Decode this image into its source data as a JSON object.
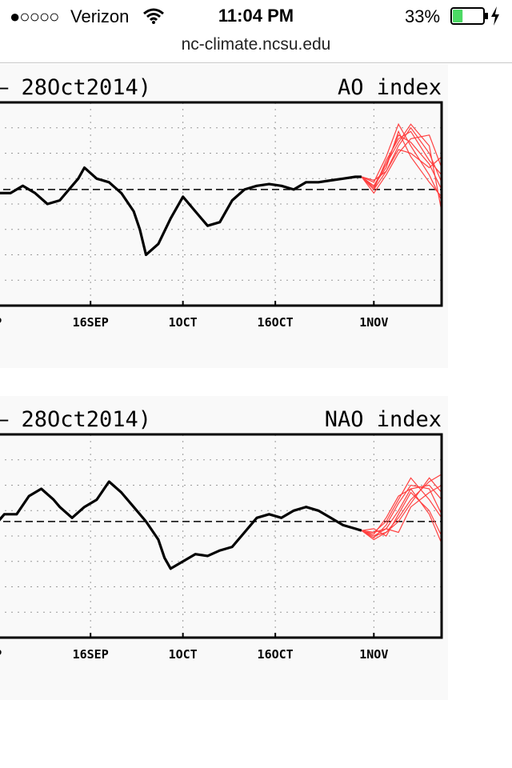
{
  "status_bar": {
    "signal_dots": "●○○○○",
    "carrier": "Verizon",
    "time": "11:04 PM",
    "battery_percent": "33%",
    "battery_level": 0.33,
    "wifi_icon": "wifi-icon",
    "battery_icon": "battery-icon",
    "charging_icon": "charging-bolt-icon"
  },
  "url_bar": {
    "url": "nc-climate.ncsu.edu"
  },
  "colors": {
    "observed": "#000000",
    "forecast": "#ff4040",
    "zero_line": "#000000",
    "grid": "#999999"
  },
  "chart_data": [
    {
      "type": "line",
      "title_left": "– 28Oct2014)",
      "title_right": "AO index",
      "tick_labels": [
        "P",
        "16SEP",
        "1OCT",
        "16OCT",
        "1NOV"
      ],
      "x_ticks": [
        0,
        15,
        30,
        45,
        61
      ],
      "xlim": [
        -1,
        72
      ],
      "ylim": [
        -3.2,
        2.4
      ],
      "zero_line": 0,
      "grid": true,
      "observed": {
        "x": [
          -1,
          0,
          2,
          4,
          6,
          8,
          10,
          12,
          13,
          14,
          16,
          18,
          20,
          22,
          23,
          24,
          26,
          28,
          30,
          32,
          34,
          36,
          37,
          38,
          40,
          42,
          44,
          46,
          48,
          50,
          52,
          54,
          56,
          58,
          59
        ],
        "y": [
          0.0,
          -0.1,
          -0.1,
          0.1,
          -0.1,
          -0.4,
          -0.3,
          0.1,
          0.3,
          0.6,
          0.3,
          0.2,
          -0.1,
          -0.6,
          -1.1,
          -1.8,
          -1.5,
          -0.8,
          -0.2,
          -0.6,
          -1.0,
          -0.9,
          -0.6,
          -0.3,
          0.0,
          0.1,
          0.15,
          0.1,
          0.0,
          0.2,
          0.2,
          0.25,
          0.3,
          0.35,
          0.35
        ]
      },
      "forecast": [
        {
          "x": [
            59,
            61,
            63,
            65,
            67,
            70,
            72
          ],
          "y": [
            0.35,
            0.1,
            0.7,
            1.5,
            1.3,
            0.7,
            0.0
          ]
        },
        {
          "x": [
            59,
            61,
            63,
            65,
            67,
            70,
            72
          ],
          "y": [
            0.35,
            0.0,
            0.5,
            1.2,
            1.7,
            1.0,
            0.2
          ]
        },
        {
          "x": [
            59,
            61,
            63,
            65,
            67,
            70,
            72
          ],
          "y": [
            0.35,
            0.2,
            0.9,
            1.8,
            1.2,
            0.4,
            -0.3
          ]
        },
        {
          "x": [
            59,
            61,
            63,
            65,
            67,
            70,
            72
          ],
          "y": [
            0.35,
            -0.1,
            0.4,
            1.0,
            1.4,
            1.5,
            0.6
          ]
        },
        {
          "x": [
            59,
            61,
            63,
            65,
            67,
            70,
            72
          ],
          "y": [
            0.35,
            0.1,
            0.6,
            1.6,
            0.9,
            0.2,
            -0.2
          ]
        },
        {
          "x": [
            59,
            61,
            63,
            65,
            67,
            70,
            72
          ],
          "y": [
            0.35,
            0.0,
            0.8,
            1.4,
            1.6,
            0.8,
            0.4
          ]
        },
        {
          "x": [
            59,
            61,
            63,
            65,
            67,
            70,
            72
          ],
          "y": [
            0.35,
            0.25,
            0.5,
            1.1,
            1.0,
            0.6,
            0.9
          ]
        },
        {
          "x": [
            59,
            61,
            63,
            65,
            67,
            70,
            72
          ],
          "y": [
            0.35,
            0.05,
            0.7,
            1.3,
            1.8,
            1.2,
            -0.6
          ]
        }
      ]
    },
    {
      "type": "line",
      "title_left": "– 28Oct2014)",
      "title_right": "NAO index",
      "tick_labels": [
        "P",
        "16SEP",
        "1OCT",
        "16OCT",
        "1NOV"
      ],
      "x_ticks": [
        0,
        15,
        30,
        45,
        61
      ],
      "xlim": [
        -1,
        72
      ],
      "ylim": [
        -3.2,
        2.4
      ],
      "zero_line": 0,
      "grid": true,
      "observed": {
        "x": [
          -1,
          1,
          3,
          5,
          7,
          9,
          10,
          12,
          14,
          16,
          18,
          20,
          22,
          24,
          26,
          27,
          28,
          30,
          32,
          34,
          36,
          38,
          40,
          42,
          44,
          46,
          48,
          50,
          52,
          54,
          56,
          58,
          59
        ],
        "y": [
          -0.2,
          0.2,
          0.2,
          0.7,
          0.9,
          0.6,
          0.4,
          0.1,
          0.4,
          0.6,
          1.1,
          0.8,
          0.4,
          0.0,
          -0.5,
          -1.0,
          -1.3,
          -1.1,
          -0.9,
          -0.95,
          -0.8,
          -0.7,
          -0.3,
          0.1,
          0.2,
          0.1,
          0.3,
          0.4,
          0.3,
          0.1,
          -0.1,
          -0.2,
          -0.25
        ]
      },
      "forecast": [
        {
          "x": [
            59,
            61,
            63,
            65,
            67,
            70,
            72
          ],
          "y": [
            -0.25,
            -0.4,
            -0.2,
            0.3,
            0.9,
            1.0,
            0.6
          ]
        },
        {
          "x": [
            59,
            61,
            63,
            65,
            67,
            70,
            72
          ],
          "y": [
            -0.25,
            -0.3,
            0.0,
            0.6,
            1.2,
            0.6,
            0.1
          ]
        },
        {
          "x": [
            59,
            61,
            63,
            65,
            67,
            70,
            72
          ],
          "y": [
            -0.25,
            -0.5,
            -0.3,
            0.1,
            0.6,
            1.1,
            1.3
          ]
        },
        {
          "x": [
            59,
            61,
            63,
            65,
            67,
            70,
            72
          ],
          "y": [
            -0.25,
            -0.2,
            -0.4,
            0.2,
            0.8,
            0.3,
            -0.4
          ]
        },
        {
          "x": [
            59,
            61,
            63,
            65,
            67,
            70,
            72
          ],
          "y": [
            -0.25,
            -0.45,
            -0.1,
            0.5,
            1.0,
            0.9,
            0.2
          ]
        },
        {
          "x": [
            59,
            61,
            63,
            65,
            67,
            70,
            72
          ],
          "y": [
            -0.25,
            -0.3,
            -0.2,
            -0.3,
            0.4,
            0.8,
            1.0
          ]
        },
        {
          "x": [
            59,
            61,
            63,
            65,
            67,
            70,
            72
          ],
          "y": [
            -0.25,
            -0.35,
            0.1,
            0.7,
            0.9,
            0.2,
            -0.6
          ]
        },
        {
          "x": [
            59,
            61,
            63,
            65,
            67,
            70,
            72
          ],
          "y": [
            -0.25,
            -0.4,
            -0.3,
            0.0,
            0.5,
            1.2,
            0.8
          ]
        }
      ]
    }
  ]
}
